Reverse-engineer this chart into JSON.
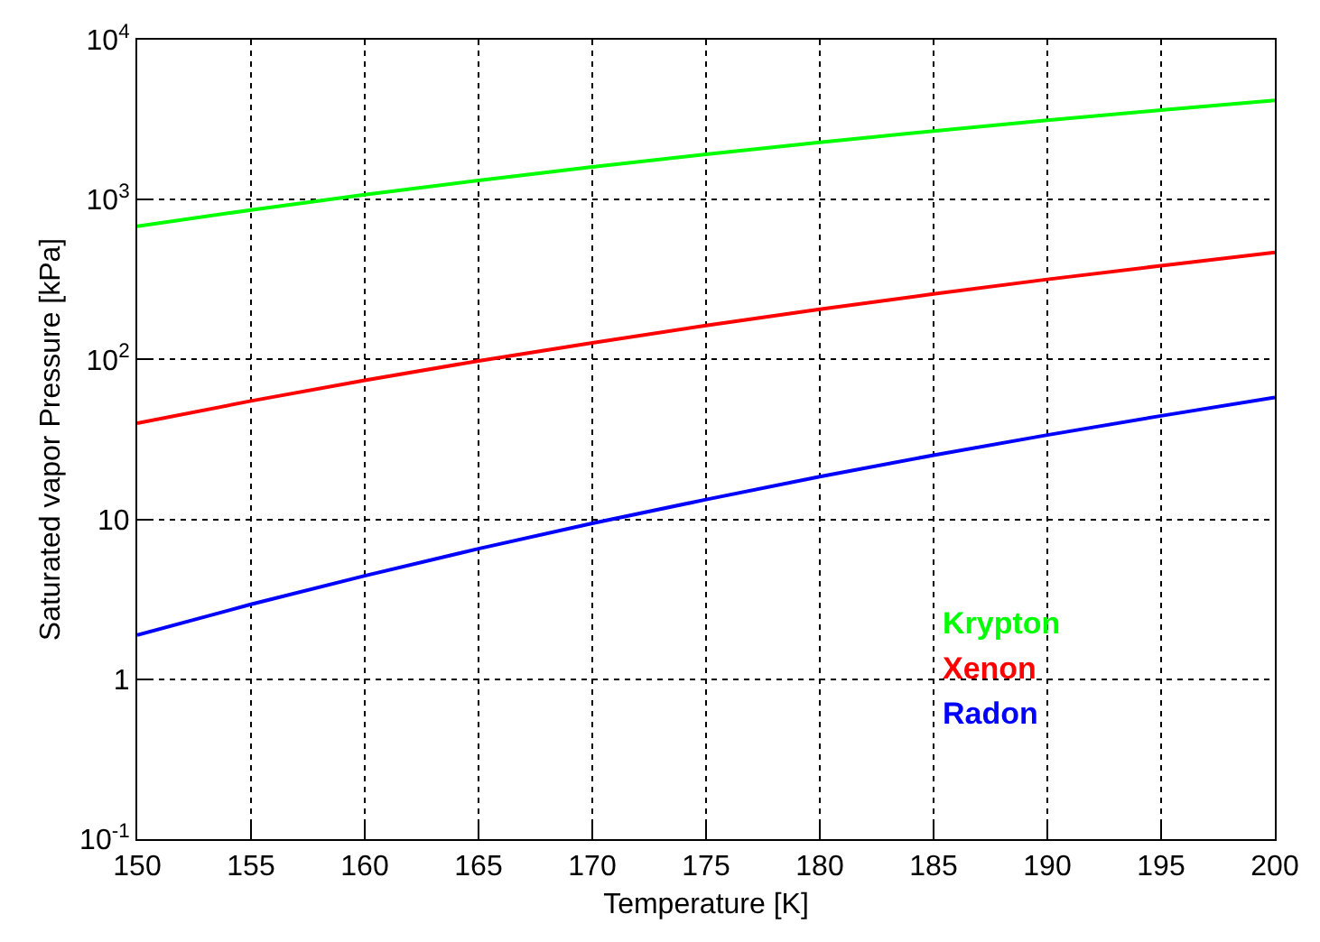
{
  "chart_data": {
    "type": "line",
    "xlabel": "Temperature [K]",
    "ylabel": "Saturated vapor Pressure [kPa]",
    "x": [
      150,
      155,
      160,
      165,
      170,
      175,
      180,
      185,
      190,
      195,
      200
    ],
    "series": [
      {
        "name": "Krypton",
        "color": "#00ff00",
        "values": [
          682,
          861,
          1073,
          1318,
          1600,
          1919,
          2280,
          2685,
          3133,
          3628,
          4169
        ]
      },
      {
        "name": "Xenon",
        "color": "#ff0000",
        "values": [
          40,
          55,
          74,
          98,
          127,
          163,
          206,
          257,
          317,
          386,
          467
        ]
      },
      {
        "name": "Radon",
        "color": "#0000ff",
        "values": [
          1.89,
          2.94,
          4.44,
          6.55,
          9.45,
          13.3,
          18.5,
          25.2,
          33.7,
          44.4,
          57.8
        ]
      }
    ],
    "log": "y",
    "xlim": [
      150,
      200
    ],
    "xticks": [
      150,
      155,
      160,
      165,
      170,
      175,
      180,
      185,
      190,
      195,
      200
    ],
    "ylim": [
      0.1,
      10000
    ],
    "yticks": [
      {
        "value": 0.1,
        "label": "10$^{-1}$"
      },
      1,
      10,
      {
        "value": 100,
        "label": "10$^{2}$"
      },
      {
        "value": 1000,
        "label": "10$^{3}$"
      },
      {
        "value": 10000,
        "label": "10$^{4}$"
      }
    ],
    "grid": true,
    "line_style": "solid",
    "marker": "none"
  }
}
